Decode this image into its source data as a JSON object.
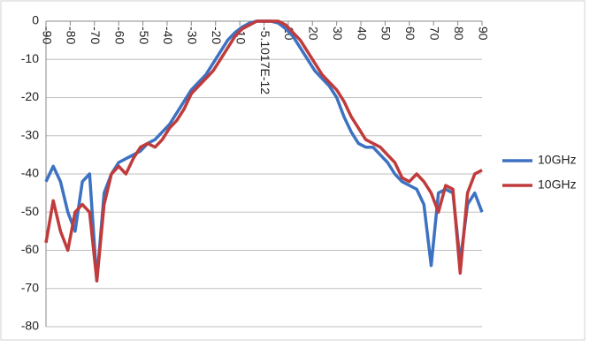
{
  "chart_data": {
    "type": "line",
    "x": [
      -90,
      -87,
      -84,
      -81,
      -78,
      -75,
      -72,
      -69,
      -66,
      -63,
      -60,
      -57,
      -54,
      -51,
      -48,
      -45,
      -42,
      -39,
      -36,
      -33,
      -30,
      -27,
      -24,
      -21,
      -18,
      -15,
      -12,
      -9,
      -6,
      -3,
      0,
      3,
      6,
      9,
      12,
      15,
      18,
      21,
      24,
      27,
      30,
      33,
      36,
      39,
      42,
      45,
      48,
      51,
      54,
      57,
      60,
      63,
      66,
      69,
      72,
      75,
      78,
      81,
      84,
      87,
      90
    ],
    "series": [
      {
        "name": "10GHz",
        "color": "#3d72c2",
        "values": [
          -42,
          -38,
          -42,
          -50,
          -55,
          -42,
          -40,
          -68,
          -45,
          -40,
          -37,
          -36,
          -35,
          -34,
          -32,
          -31,
          -29,
          -27,
          -24,
          -21,
          -18,
          -16,
          -14,
          -11,
          -8,
          -5,
          -3,
          -1.5,
          -0.5,
          0,
          0,
          0,
          -0.5,
          -2,
          -4,
          -7,
          -10,
          -13,
          -15,
          -17,
          -20,
          -25,
          -29,
          -32,
          -33,
          -33,
          -35,
          -37,
          -40,
          -42,
          -43,
          -44,
          -48,
          -64,
          -45,
          -44,
          -45,
          -63,
          -48,
          -45,
          -50
        ]
      },
      {
        "name": "10GHz",
        "color": "#c03b3b",
        "values": [
          -58,
          -47,
          -55,
          -60,
          -50,
          -48,
          -50,
          -68,
          -48,
          -40,
          -38,
          -40,
          -36,
          -33,
          -32,
          -33,
          -31,
          -28,
          -26,
          -23,
          -19,
          -17,
          -15,
          -13,
          -10,
          -7,
          -4,
          -2,
          -1,
          0,
          0,
          0,
          0,
          -1,
          -3,
          -5,
          -8,
          -11,
          -14,
          -16,
          -18,
          -21,
          -25,
          -28,
          -31,
          -32,
          -33,
          -35,
          -37,
          -41,
          -42,
          -40,
          -42,
          -45,
          -50,
          -43,
          -44,
          -66,
          -45,
          -40,
          -39
        ]
      }
    ],
    "xlim": [
      -90,
      90
    ],
    "xticks": [
      -90,
      -80,
      -70,
      -60,
      -50,
      -40,
      -30,
      -20,
      -10,
      {
        "value": 0,
        "label": "-5.1017E-12"
      },
      10,
      20,
      30,
      40,
      50,
      60,
      70,
      80,
      90
    ],
    "ylim": [
      -80,
      0
    ],
    "yticks": [
      0,
      -10,
      -20,
      -30,
      -40,
      -50,
      -60,
      -70,
      -80
    ],
    "grid": true
  }
}
